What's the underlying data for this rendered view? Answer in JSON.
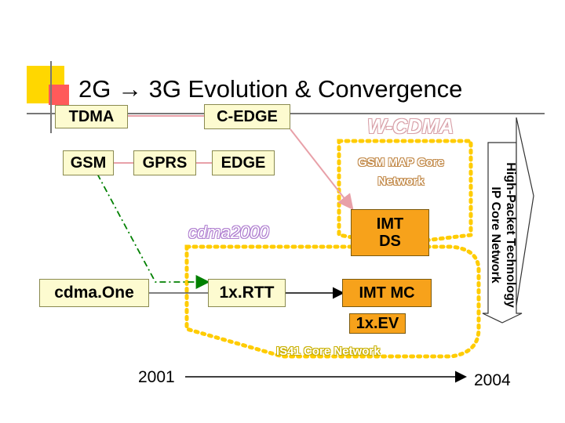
{
  "title": "2G → 3G Evolution & Convergence",
  "nodes": {
    "tdma": "TDMA",
    "c_edge": "C-EDGE",
    "gsm": "GSM",
    "gprs": "GPRS",
    "edge": "EDGE",
    "cdmaone": "cdma.One",
    "rtt": "1x.RTT",
    "imt_ds": "IMT DS",
    "imt_mc": "IMT MC",
    "ev": "1x.EV"
  },
  "regions": {
    "wcdma": "W-CDMA",
    "gsm_map": "GSM MAP Core Network",
    "cdma2000": "cdma2000",
    "is41": "IS41 Core Network"
  },
  "side_label": {
    "line1": "High-Packet Technology",
    "line2": "IP Core Network"
  },
  "timeline": {
    "start": "2001",
    "end": "2004"
  },
  "colors": {
    "box_fill": "#fdfbd0",
    "orange_fill": "#f7a21b",
    "yellow_region": "#ffcc00",
    "arrow_pink": "#e8a0a8",
    "dash_green": "#008000",
    "accent_yellow": "#ffd700",
    "accent_red": "#ff4040"
  }
}
